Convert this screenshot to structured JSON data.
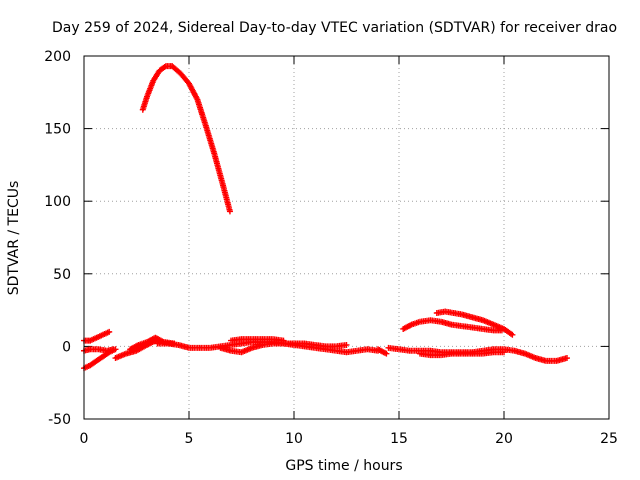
{
  "chart_data": {
    "type": "scatter",
    "title": "Day 259 of 2024, Sidereal Day-to-day VTEC variation (SDTVAR) for receiver drao",
    "xlabel": "GPS time / hours",
    "ylabel": "SDTVAR / TECUs",
    "xlim": [
      0,
      25
    ],
    "ylim": [
      -50,
      200
    ],
    "xticks": [
      0,
      5,
      10,
      15,
      20,
      25
    ],
    "yticks": [
      -50,
      0,
      50,
      100,
      150,
      200
    ],
    "grid": true,
    "series_color": "#ff0000",
    "series": [
      {
        "name": "arc-high",
        "points": [
          [
            2.8,
            163
          ],
          [
            3.0,
            172
          ],
          [
            3.3,
            183
          ],
          [
            3.6,
            190
          ],
          [
            3.9,
            193
          ],
          [
            4.2,
            193
          ],
          [
            4.6,
            188
          ],
          [
            5.0,
            181
          ],
          [
            5.4,
            170
          ],
          [
            5.8,
            152
          ],
          [
            6.2,
            133
          ],
          [
            6.6,
            112
          ],
          [
            6.95,
            93
          ]
        ]
      },
      {
        "name": "arc-low-start",
        "points": [
          [
            0.0,
            4
          ],
          [
            0.3,
            4
          ],
          [
            0.6,
            6
          ],
          [
            0.9,
            8
          ],
          [
            1.2,
            10
          ]
        ]
      },
      {
        "name": "arc-low-start-2",
        "points": [
          [
            0.0,
            -3
          ],
          [
            0.3,
            -2
          ],
          [
            0.7,
            -2
          ],
          [
            1.1,
            -3
          ],
          [
            1.4,
            -2
          ]
        ]
      },
      {
        "name": "arc-low-start-3",
        "points": [
          [
            0.0,
            -15
          ],
          [
            0.3,
            -13
          ],
          [
            0.6,
            -10
          ],
          [
            0.9,
            -7
          ],
          [
            1.2,
            -4
          ],
          [
            1.5,
            -2
          ]
        ]
      },
      {
        "name": "arc-early-1",
        "points": [
          [
            1.5,
            -8
          ],
          [
            2.0,
            -5
          ],
          [
            2.5,
            -3
          ],
          [
            3.0,
            1
          ],
          [
            3.4,
            4
          ],
          [
            3.6,
            3
          ]
        ]
      },
      {
        "name": "arc-early-2",
        "points": [
          [
            2.2,
            -2
          ],
          [
            2.6,
            1
          ],
          [
            3.0,
            3
          ],
          [
            3.4,
            6
          ],
          [
            3.8,
            3
          ],
          [
            4.3,
            2
          ]
        ]
      },
      {
        "name": "arc-main",
        "points": [
          [
            3.5,
            2
          ],
          [
            4.0,
            2
          ],
          [
            4.5,
            1
          ],
          [
            5.0,
            -1
          ],
          [
            5.5,
            -1
          ],
          [
            6.0,
            -1
          ],
          [
            6.5,
            0
          ],
          [
            7.0,
            1
          ],
          [
            7.5,
            2
          ],
          [
            8.0,
            3
          ],
          [
            8.5,
            3
          ],
          [
            9.0,
            3
          ],
          [
            9.5,
            2
          ],
          [
            10.0,
            1
          ],
          [
            10.5,
            0
          ],
          [
            11.0,
            -1
          ],
          [
            11.5,
            -2
          ],
          [
            12.0,
            -3
          ],
          [
            12.5,
            -4
          ],
          [
            13.0,
            -3
          ],
          [
            13.5,
            -2
          ],
          [
            14.0,
            -3
          ]
        ]
      },
      {
        "name": "arc-main-2",
        "points": [
          [
            6.5,
            -1
          ],
          [
            7.0,
            -3
          ],
          [
            7.5,
            -4
          ],
          [
            8.0,
            -1
          ],
          [
            8.5,
            1
          ],
          [
            9.0,
            2
          ],
          [
            9.5,
            2
          ],
          [
            10.0,
            2
          ],
          [
            10.5,
            2
          ],
          [
            11.0,
            1
          ],
          [
            11.5,
            0
          ],
          [
            12.0,
            0
          ],
          [
            12.5,
            1
          ]
        ]
      },
      {
        "name": "arc-main-3",
        "points": [
          [
            7.0,
            4
          ],
          [
            7.5,
            5
          ],
          [
            8.0,
            5
          ],
          [
            8.5,
            5
          ],
          [
            9.0,
            5
          ],
          [
            9.5,
            4
          ]
        ]
      },
      {
        "name": "arc-late",
        "points": [
          [
            14.5,
            -1
          ],
          [
            15.0,
            -2
          ],
          [
            15.5,
            -3
          ],
          [
            16.0,
            -3
          ],
          [
            16.5,
            -3
          ],
          [
            17.0,
            -4
          ],
          [
            17.5,
            -4
          ],
          [
            18.0,
            -4
          ],
          [
            18.5,
            -4
          ],
          [
            19.0,
            -3
          ],
          [
            19.5,
            -2
          ],
          [
            20.0,
            -2
          ],
          [
            20.5,
            -3
          ],
          [
            21.0,
            -5
          ],
          [
            21.5,
            -8
          ],
          [
            22.0,
            -10
          ],
          [
            22.5,
            -10
          ],
          [
            23.0,
            -8
          ]
        ]
      },
      {
        "name": "arc-late-2",
        "points": [
          [
            16.0,
            -5
          ],
          [
            16.5,
            -6
          ],
          [
            17.0,
            -6
          ],
          [
            17.5,
            -5
          ],
          [
            18.0,
            -5
          ],
          [
            18.5,
            -5
          ],
          [
            19.0,
            -5
          ],
          [
            19.5,
            -4
          ],
          [
            20.0,
            -4
          ]
        ]
      },
      {
        "name": "arc-late-3",
        "points": [
          [
            14.0,
            -2
          ],
          [
            14.4,
            -5
          ]
        ]
      },
      {
        "name": "arc-hump-1",
        "points": [
          [
            15.2,
            12
          ],
          [
            15.6,
            15
          ],
          [
            16.0,
            17
          ],
          [
            16.5,
            18
          ],
          [
            17.0,
            17
          ],
          [
            17.5,
            15
          ],
          [
            18.0,
            14
          ],
          [
            18.5,
            13
          ],
          [
            19.0,
            12
          ],
          [
            19.5,
            11
          ],
          [
            19.9,
            11
          ]
        ]
      },
      {
        "name": "arc-hump-2",
        "points": [
          [
            16.8,
            23
          ],
          [
            17.2,
            24
          ],
          [
            17.6,
            23
          ],
          [
            18.0,
            22
          ],
          [
            18.5,
            20
          ],
          [
            19.0,
            18
          ],
          [
            19.5,
            15
          ],
          [
            20.0,
            12
          ],
          [
            20.4,
            8
          ]
        ]
      }
    ]
  }
}
